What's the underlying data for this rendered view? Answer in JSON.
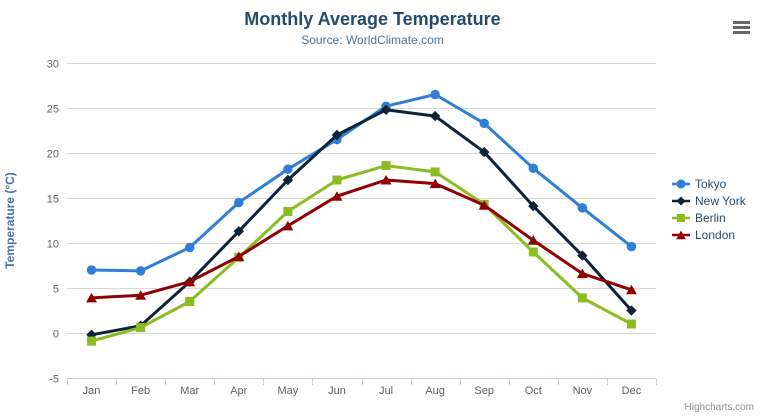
{
  "credits": "Highcharts.com",
  "export_menu_icon": "hamburger-icon",
  "chart_data": {
    "type": "line",
    "title": "Monthly Average Temperature",
    "subtitle": "Source: WorldClimate.com",
    "xlabel": "",
    "ylabel": "Temperature (°C)",
    "ylim": [
      -5,
      30
    ],
    "ytick_interval": 5,
    "grid": true,
    "legend_position": "right",
    "categories": [
      "Jan",
      "Feb",
      "Mar",
      "Apr",
      "May",
      "Jun",
      "Jul",
      "Aug",
      "Sep",
      "Oct",
      "Nov",
      "Dec"
    ],
    "series": [
      {
        "name": "Tokyo",
        "color": "#2f7ed8",
        "marker": "circle",
        "values": [
          7.0,
          6.9,
          9.5,
          14.5,
          18.2,
          21.5,
          25.2,
          26.5,
          23.3,
          18.3,
          13.9,
          9.6
        ]
      },
      {
        "name": "New York",
        "color": "#0d233a",
        "marker": "diamond",
        "values": [
          -0.2,
          0.8,
          5.7,
          11.3,
          17.0,
          22.0,
          24.8,
          24.1,
          20.1,
          14.1,
          8.6,
          2.5
        ]
      },
      {
        "name": "Berlin",
        "color": "#8bbc21",
        "marker": "square",
        "values": [
          -0.9,
          0.6,
          3.5,
          8.4,
          13.5,
          17.0,
          18.6,
          17.9,
          14.3,
          9.0,
          3.9,
          1.0
        ]
      },
      {
        "name": "London",
        "color": "#910000",
        "marker": "triangle",
        "values": [
          3.9,
          4.2,
          5.7,
          8.5,
          11.9,
          15.2,
          17.0,
          16.6,
          14.2,
          10.3,
          6.6,
          4.8
        ]
      }
    ]
  }
}
